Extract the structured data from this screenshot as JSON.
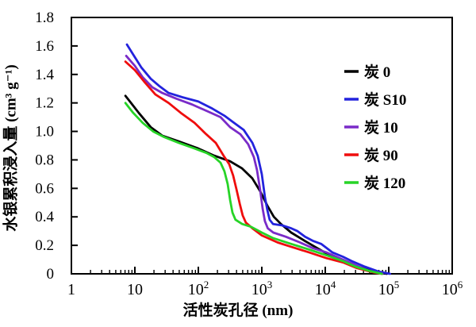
{
  "figure": {
    "background": "#ffffff"
  },
  "chart_data": {
    "type": "line",
    "title": "",
    "xlabel": "活性炭孔径 (nm)",
    "ylabel": "水银累积浸入量 (cm³ g⁻¹)",
    "x_scale": "log",
    "xlim": [
      1,
      1000000
    ],
    "ylim": [
      0,
      1.8
    ],
    "x_ticks": [
      1,
      10,
      100,
      1000,
      10000,
      100000,
      1000000
    ],
    "y_ticks": [
      0,
      0.2,
      0.4,
      0.6,
      0.8,
      1.0,
      1.2,
      1.4,
      1.6,
      1.8
    ],
    "grid": false,
    "frame": "full-box",
    "tick_direction": "in",
    "legend_position": "upper-right-inside",
    "axis_color": "#000000",
    "series": [
      {
        "name": "炭 0",
        "color": "#000000",
        "points": [
          [
            7.1,
            1.25
          ],
          [
            8.7,
            1.2
          ],
          [
            11.5,
            1.13
          ],
          [
            17.8,
            1.03
          ],
          [
            27,
            0.97
          ],
          [
            49,
            0.93
          ],
          [
            100,
            0.88
          ],
          [
            178,
            0.83
          ],
          [
            316,
            0.79
          ],
          [
            490,
            0.74
          ],
          [
            710,
            0.67
          ],
          [
            940,
            0.58
          ],
          [
            1220,
            0.48
          ],
          [
            1550,
            0.4
          ],
          [
            2000,
            0.35
          ],
          [
            2900,
            0.29
          ],
          [
            4800,
            0.23
          ],
          [
            7500,
            0.18
          ],
          [
            13000,
            0.12
          ],
          [
            19000,
            0.095
          ],
          [
            27000,
            0.06
          ],
          [
            57000,
            0.02
          ],
          [
            93000,
            0
          ]
        ]
      },
      {
        "name": "炭 S10",
        "color": "#2323dd",
        "points": [
          [
            7.5,
            1.61
          ],
          [
            9.4,
            1.54
          ],
          [
            12.6,
            1.45
          ],
          [
            17.8,
            1.37
          ],
          [
            24,
            1.32
          ],
          [
            34,
            1.27
          ],
          [
            56,
            1.24
          ],
          [
            100,
            1.21
          ],
          [
            166,
            1.16
          ],
          [
            258,
            1.11
          ],
          [
            365,
            1.06
          ],
          [
            520,
            1.01
          ],
          [
            710,
            0.92
          ],
          [
            860,
            0.83
          ],
          [
            1000,
            0.7
          ],
          [
            1120,
            0.54
          ],
          [
            1220,
            0.45
          ],
          [
            1330,
            0.38
          ],
          [
            1500,
            0.35
          ],
          [
            2100,
            0.34
          ],
          [
            2900,
            0.32
          ],
          [
            3650,
            0.3
          ],
          [
            4800,
            0.26
          ],
          [
            6500,
            0.23
          ],
          [
            8600,
            0.21
          ],
          [
            13000,
            0.15
          ],
          [
            19000,
            0.12
          ],
          [
            26000,
            0.09
          ],
          [
            42000,
            0.05
          ],
          [
            70000,
            0.015
          ],
          [
            105000,
            0
          ]
        ]
      },
      {
        "name": "炭 10",
        "color": "#7a2bc8",
        "points": [
          [
            7.3,
            1.53
          ],
          [
            10,
            1.46
          ],
          [
            13.3,
            1.38
          ],
          [
            18.8,
            1.31
          ],
          [
            27,
            1.27
          ],
          [
            45,
            1.23
          ],
          [
            79,
            1.19
          ],
          [
            141,
            1.14
          ],
          [
            224,
            1.1
          ],
          [
            316,
            1.03
          ],
          [
            460,
            0.98
          ],
          [
            610,
            0.91
          ],
          [
            750,
            0.82
          ],
          [
            840,
            0.73
          ],
          [
            940,
            0.59
          ],
          [
            1030,
            0.46
          ],
          [
            1120,
            0.37
          ],
          [
            1240,
            0.32
          ],
          [
            1520,
            0.29
          ],
          [
            2400,
            0.26
          ],
          [
            4000,
            0.22
          ],
          [
            6400,
            0.18
          ],
          [
            10500,
            0.15
          ],
          [
            19000,
            0.1
          ],
          [
            30000,
            0.06
          ],
          [
            49000,
            0.02
          ],
          [
            80000,
            0
          ]
        ]
      },
      {
        "name": "炭 90",
        "color": "#ef0d0d",
        "points": [
          [
            7.1,
            1.49
          ],
          [
            10,
            1.43
          ],
          [
            14,
            1.35
          ],
          [
            21,
            1.26
          ],
          [
            34,
            1.2
          ],
          [
            53,
            1.13
          ],
          [
            87,
            1.06
          ],
          [
            133,
            0.98
          ],
          [
            188,
            0.92
          ],
          [
            250,
            0.83
          ],
          [
            306,
            0.77
          ],
          [
            354,
            0.69
          ],
          [
            400,
            0.59
          ],
          [
            450,
            0.49
          ],
          [
            500,
            0.41
          ],
          [
            560,
            0.36
          ],
          [
            710,
            0.32
          ],
          [
            1000,
            0.27
          ],
          [
            1780,
            0.22
          ],
          [
            2900,
            0.19
          ],
          [
            5600,
            0.15
          ],
          [
            10500,
            0.11
          ],
          [
            19000,
            0.08
          ],
          [
            31600,
            0.04
          ],
          [
            57000,
            0.01
          ],
          [
            78000,
            0
          ]
        ]
      },
      {
        "name": "炭 120",
        "color": "#27d427",
        "points": [
          [
            7.1,
            1.2
          ],
          [
            9.4,
            1.13
          ],
          [
            13.3,
            1.06
          ],
          [
            19.4,
            1.0
          ],
          [
            29,
            0.96
          ],
          [
            49,
            0.92
          ],
          [
            87,
            0.88
          ],
          [
            133,
            0.85
          ],
          [
            178,
            0.82
          ],
          [
            224,
            0.78
          ],
          [
            258,
            0.72
          ],
          [
            290,
            0.63
          ],
          [
            316,
            0.52
          ],
          [
            345,
            0.43
          ],
          [
            385,
            0.38
          ],
          [
            490,
            0.35
          ],
          [
            680,
            0.33
          ],
          [
            1000,
            0.29
          ],
          [
            1520,
            0.25
          ],
          [
            2900,
            0.21
          ],
          [
            5600,
            0.17
          ],
          [
            10500,
            0.13
          ],
          [
            19000,
            0.09
          ],
          [
            30000,
            0.05
          ],
          [
            50000,
            0.02
          ],
          [
            78000,
            0
          ]
        ]
      }
    ],
    "legend": {
      "items": [
        "炭 0",
        "炭 S10",
        "炭 10",
        "炭 90",
        "炭 120"
      ]
    }
  }
}
